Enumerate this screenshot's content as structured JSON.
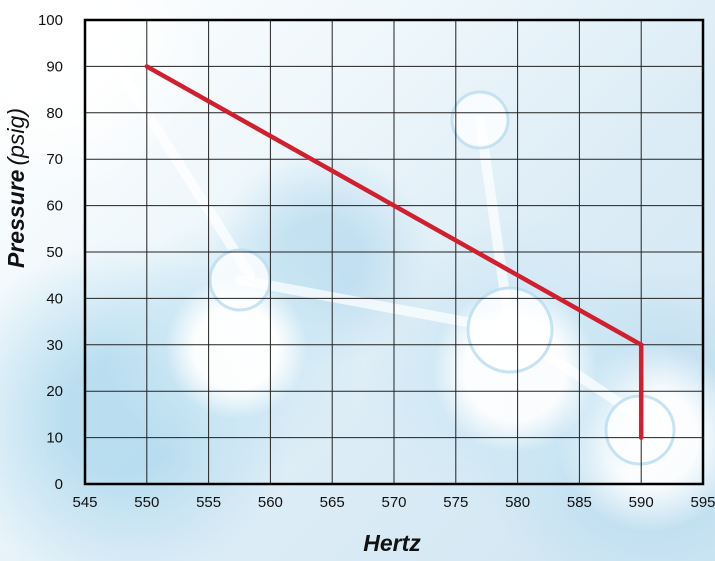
{
  "chart_data": {
    "type": "line",
    "title": "",
    "xlabel": "Hertz",
    "ylabel": "Pressure",
    "yunit": "(psig)",
    "xlim": [
      545,
      595
    ],
    "ylim": [
      0,
      100
    ],
    "xticks": [
      545,
      550,
      555,
      560,
      565,
      570,
      575,
      580,
      585,
      590,
      595
    ],
    "yticks": [
      0,
      10,
      20,
      30,
      40,
      50,
      60,
      70,
      80,
      90,
      100
    ],
    "grid": true,
    "series": [
      {
        "x": [
          550,
          590,
          590
        ],
        "y": [
          90,
          30,
          10
        ],
        "color": "#d11f2e"
      }
    ]
  }
}
